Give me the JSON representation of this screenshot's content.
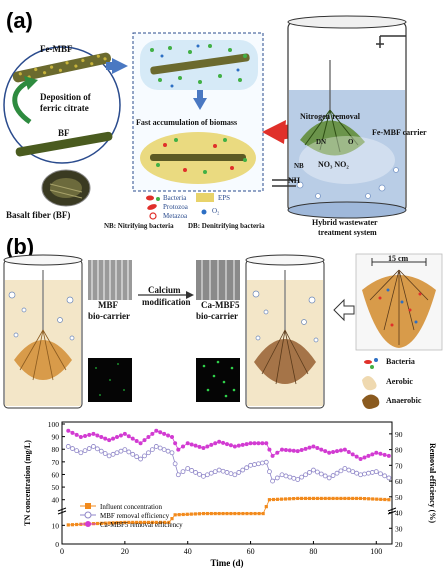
{
  "panel_a": {
    "label": "(a)",
    "fiber_top_label": "Fe-MBF",
    "deposition_label_line1": "Deposition of",
    "deposition_label_line2": "ferric citrate",
    "fiber_bottom_label": "BF",
    "basalt_label": "Basalt fiber (BF)",
    "fast_accumulation": "Fast accumulation of biomass",
    "nitrogen_removal": "Nitrogen removal",
    "carrier_label": "Fe-MBF carrier",
    "dn_label": "DN",
    "nb_label": "NB",
    "o2_label": "O",
    "nh4_label": "NH",
    "no3no2_label": "NO₃  NO₂",
    "system_line1": "Hybrid wastewater",
    "system_line2": "treatment system",
    "legend": {
      "bacteria": "Bacteria",
      "protozoa": "Protozoa",
      "metazoa": "Metazoa",
      "eps": "EPS",
      "o2": "O₂",
      "nb": "NB: Nitrifying bacteria",
      "db": "DB: Denitrifying bacteria"
    },
    "colors": {
      "fiber_green": "#8a9a3c",
      "biofilm_yellow": "#e8d36a",
      "arrow_blue": "#4a78c2",
      "arrow_red": "#e0302a",
      "water_blue": "#b9cde6",
      "highlight_green": "#2e8b3f"
    }
  },
  "panel_b": {
    "label": "(b)",
    "mbf_label_line1": "MBF",
    "mbf_label_line2": "bio-carrier",
    "calcium_label_line1": "Calcium",
    "calcium_label_line2": "modification",
    "camb_label_line1": "Ca-MBF5",
    "camb_label_line2": "bio-carrier",
    "size_label": "15 cm",
    "legend": {
      "bacteria": "Bacteria",
      "aerobic": "Aerobic",
      "anaerobic": "Anaerobic"
    },
    "colors": {
      "biofilm_orange": "#d89b4a",
      "tank_water": "#f3e6c8",
      "sem_green": "#1a8c2b"
    }
  },
  "chart_data": {
    "type": "line",
    "xlabel": "Time (d)",
    "ylabel_left": "TN concentration (mg/L)",
    "ylabel_right": "Removal efficiency (%)",
    "x_ticks": [
      0,
      20,
      40,
      60,
      80,
      100
    ],
    "y_left_ticks_low": [
      0,
      10
    ],
    "y_left_ticks_high": [
      40,
      50,
      60,
      70,
      80,
      90,
      100
    ],
    "y_right_ticks": [
      20,
      30,
      40,
      50,
      60,
      70,
      80,
      90
    ],
    "xlim": [
      0,
      105
    ],
    "legend_placement": "center-left",
    "series": [
      {
        "name": "Influent concentration",
        "axis": "left",
        "color": "#f28a1c",
        "marker": "square",
        "x": [
          2,
          10,
          20,
          30,
          34,
          36,
          45,
          55,
          64,
          66,
          75,
          85,
          95,
          104
        ],
        "y": [
          20,
          21,
          22,
          22,
          22,
          28,
          29,
          29,
          29,
          40,
          41,
          41,
          41,
          40
        ]
      },
      {
        "name": "MBF removal efficiency",
        "axis": "right",
        "color": "#8f86c8",
        "marker": "circle-open",
        "x": [
          2,
          6,
          10,
          15,
          20,
          25,
          30,
          35,
          37,
          40,
          45,
          50,
          55,
          60,
          65,
          67,
          70,
          75,
          80,
          85,
          90,
          95,
          100,
          104
        ],
        "y": [
          82,
          78,
          82,
          76,
          80,
          74,
          82,
          78,
          64,
          68,
          63,
          67,
          64,
          70,
          72,
          60,
          64,
          61,
          67,
          62,
          68,
          64,
          66,
          62
        ]
      },
      {
        "name": "Ca-MBF5 removal efficiency",
        "axis": "right",
        "color": "#d23bd2",
        "marker": "circle",
        "x": [
          2,
          6,
          10,
          15,
          20,
          25,
          30,
          35,
          37,
          40,
          45,
          50,
          55,
          60,
          65,
          67,
          70,
          75,
          80,
          85,
          90,
          95,
          100,
          104
        ],
        "y": [
          92,
          88,
          90,
          86,
          90,
          84,
          92,
          88,
          80,
          84,
          81,
          85,
          82,
          84,
          84,
          76,
          80,
          79,
          82,
          78,
          80,
          74,
          78,
          76
        ]
      }
    ]
  }
}
